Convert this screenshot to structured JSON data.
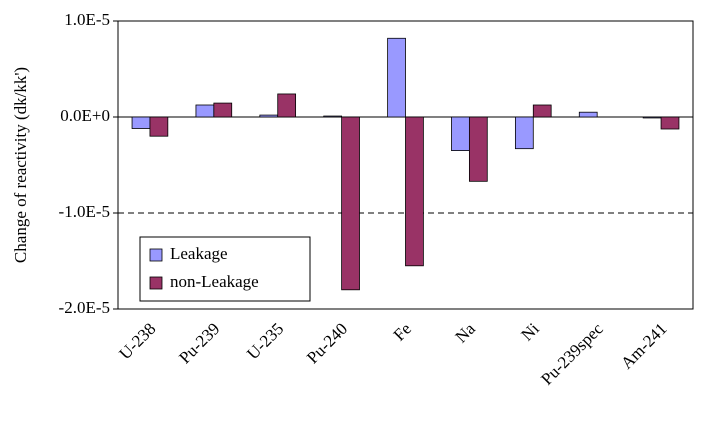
{
  "chart_data": {
    "type": "bar",
    "y_label": "Change of reactivity (dk/kk')",
    "categories": [
      "U-238",
      "Pu-239",
      "U-235",
      "Pu-240",
      "Fe",
      "Na",
      "Ni",
      "Pu-239spec",
      "Am-241"
    ],
    "series": [
      {
        "name": "Leakage",
        "color": "#9999ff",
        "values": [
          -1.2e-06,
          1.25e-06,
          2e-07,
          1e-07,
          8.2e-06,
          -3.5e-06,
          -3.3e-06,
          5e-07,
          -1e-07
        ]
      },
      {
        "name": "non-Leakage",
        "color": "#993366",
        "values": [
          -2e-06,
          1.45e-06,
          2.4e-06,
          -1.8e-05,
          -1.55e-05,
          -6.7e-06,
          1.25e-06,
          0,
          -1.25e-06
        ]
      }
    ],
    "ylim": [
      -2e-05,
      1e-05
    ],
    "yticks": [
      {
        "value": 1e-05,
        "label": "1.0E-5"
      },
      {
        "value": 0,
        "label": "0.0E+0"
      },
      {
        "value": -1e-05,
        "label": "-1.0E-5"
      },
      {
        "value": -2e-05,
        "label": "-2.0E-5"
      }
    ],
    "grid": true,
    "legend": "lower left"
  }
}
